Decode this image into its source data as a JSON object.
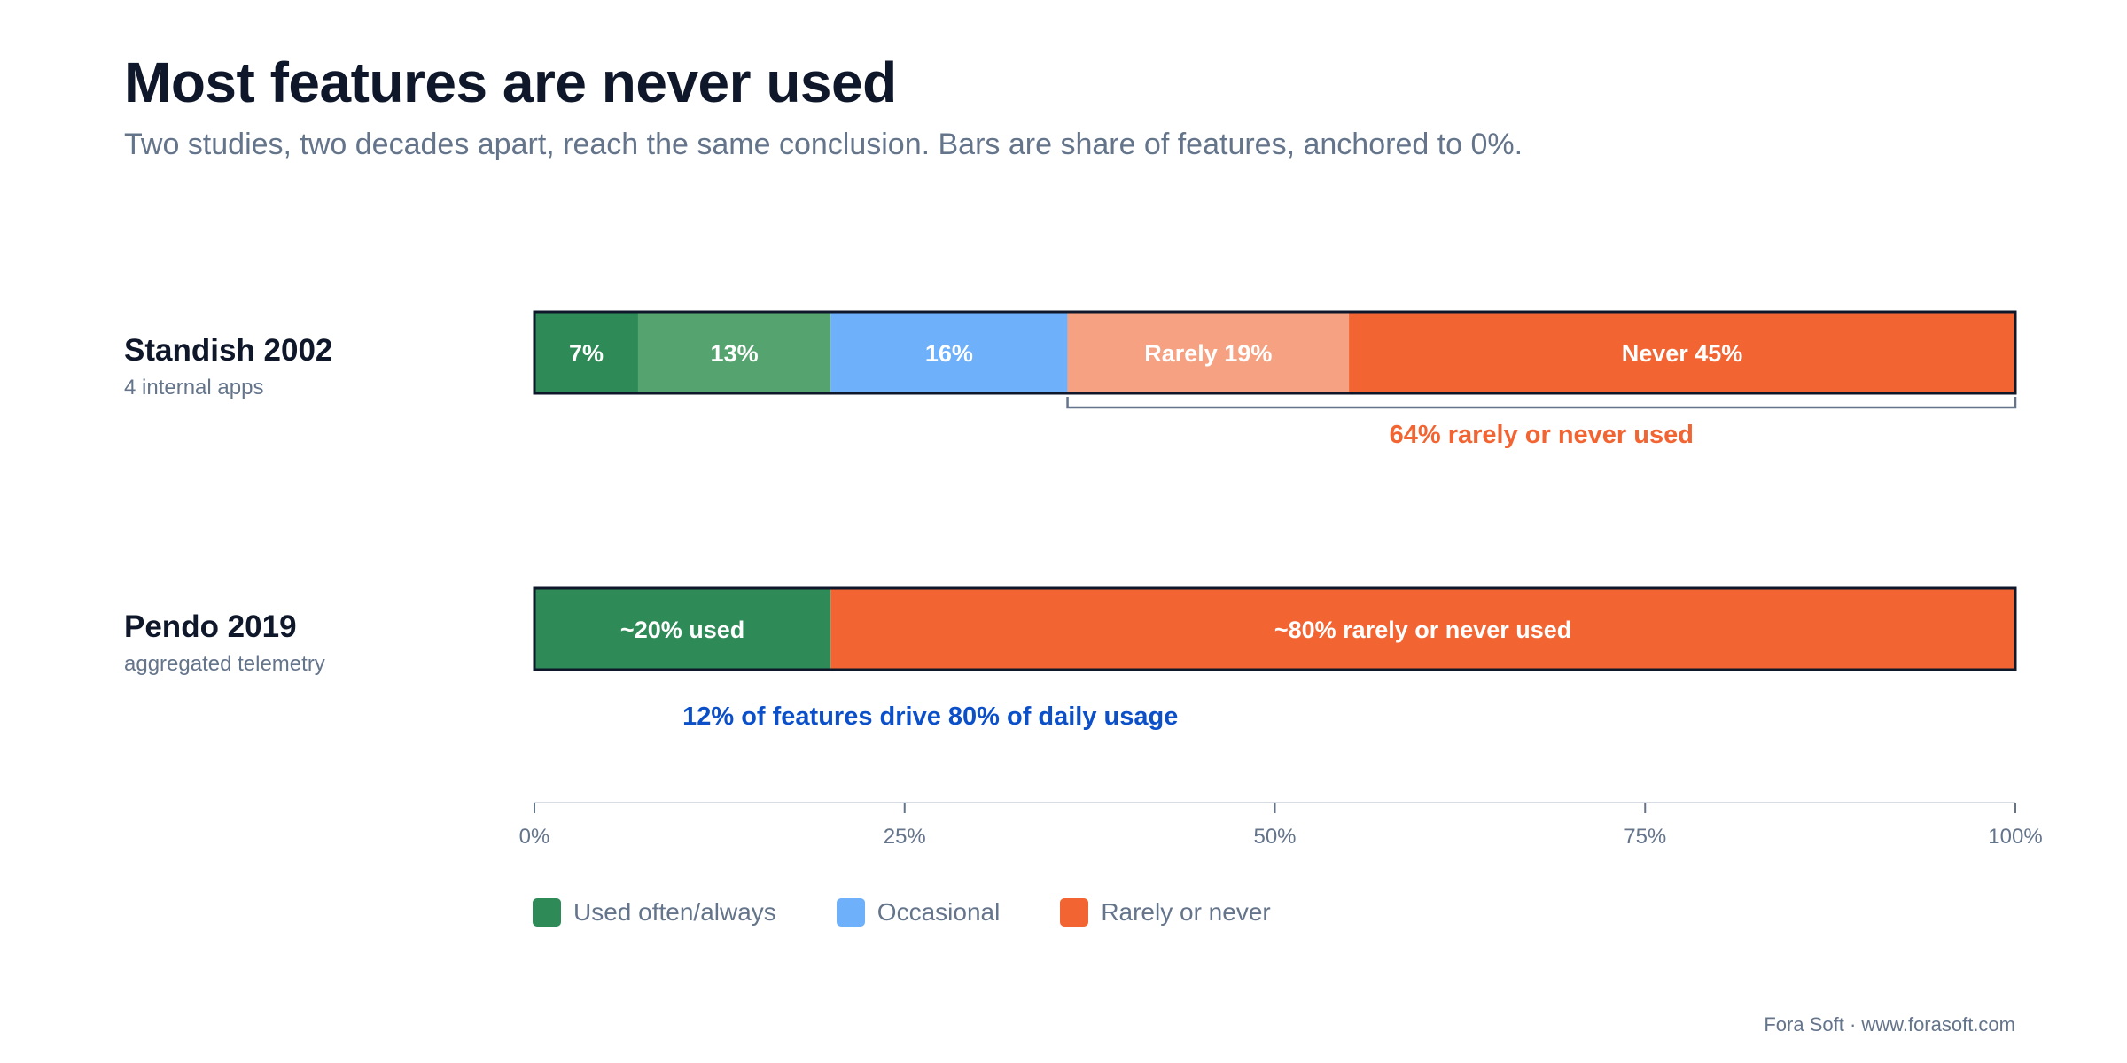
{
  "title": "Most features are never used",
  "subtitle": "Two studies, two decades apart, reach the same conclusion. Bars are share of features, anchored to 0%.",
  "footer": "Fora Soft · www.forasoft.com",
  "chart_data": {
    "type": "bar",
    "orientation": "horizontal",
    "stacked": true,
    "xlim": [
      0,
      100
    ],
    "x_ticks": [
      "0%",
      "25%",
      "50%",
      "75%",
      "100%"
    ],
    "x_tick_values": [
      0,
      25,
      50,
      75,
      100
    ],
    "grid": false,
    "legend_position": "bottom-left",
    "rows": [
      {
        "name": "Standish 2002",
        "subtitle": "4 internal apps",
        "segments": [
          {
            "label": "7%",
            "value": 7,
            "color": "#2e8b57"
          },
          {
            "label": "13%",
            "value": 13,
            "color": "#55a36f"
          },
          {
            "label": "16%",
            "value": 16,
            "color": "#6fb0fa"
          },
          {
            "label": "Rarely 19%",
            "value": 19,
            "color": "#f6a282"
          },
          {
            "label": "Never 45%",
            "value": 45,
            "color": "#f26533"
          }
        ],
        "annotation": {
          "text": "64% rarely or never used",
          "from": 36,
          "to": 100,
          "color": "#f26533"
        }
      },
      {
        "name": "Pendo 2019",
        "subtitle": "aggregated telemetry",
        "segments": [
          {
            "label": "~20% used",
            "value": 20,
            "color": "#2e8b57"
          },
          {
            "label": "~80% rarely or never used",
            "value": 80,
            "color": "#f26533"
          }
        ],
        "annotation": {
          "text": "12% of features drive 80% of daily usage",
          "color": "#0b50c8"
        }
      }
    ],
    "legend": [
      {
        "label": "Used often/always",
        "color": "#2e8b57"
      },
      {
        "label": "Occasional",
        "color": "#6fb0fa"
      },
      {
        "label": "Rarely or never",
        "color": "#f26533"
      }
    ]
  }
}
